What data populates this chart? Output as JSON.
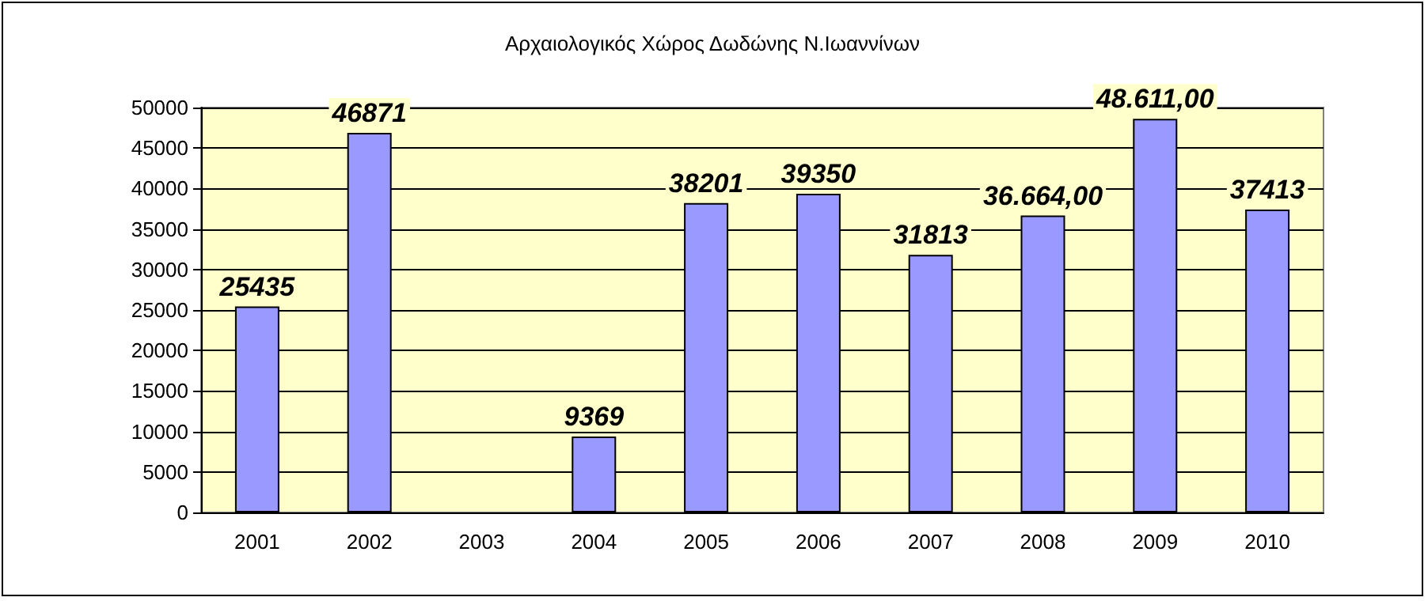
{
  "chart_data": {
    "type": "bar",
    "title": "Αρχαιολογικός Χώρος Δωδώνης Ν.Ιωαννίνων",
    "categories": [
      "2001",
      "2002",
      "2003",
      "2004",
      "2005",
      "2006",
      "2007",
      "2008",
      "2009",
      "2010"
    ],
    "values": [
      25435,
      46871,
      null,
      9369,
      38201,
      39350,
      31813,
      36664,
      48611,
      37413
    ],
    "value_labels": [
      "25435",
      "46871",
      null,
      "9369",
      "38201",
      "39350",
      "31813",
      "36.664,00",
      "48.611,00",
      "37413"
    ],
    "color": "#9999ff",
    "ylim": [
      0,
      50000
    ],
    "yticks": [
      0,
      5000,
      10000,
      15000,
      20000,
      25000,
      30000,
      35000,
      40000,
      45000,
      50000
    ],
    "grid": "y"
  }
}
